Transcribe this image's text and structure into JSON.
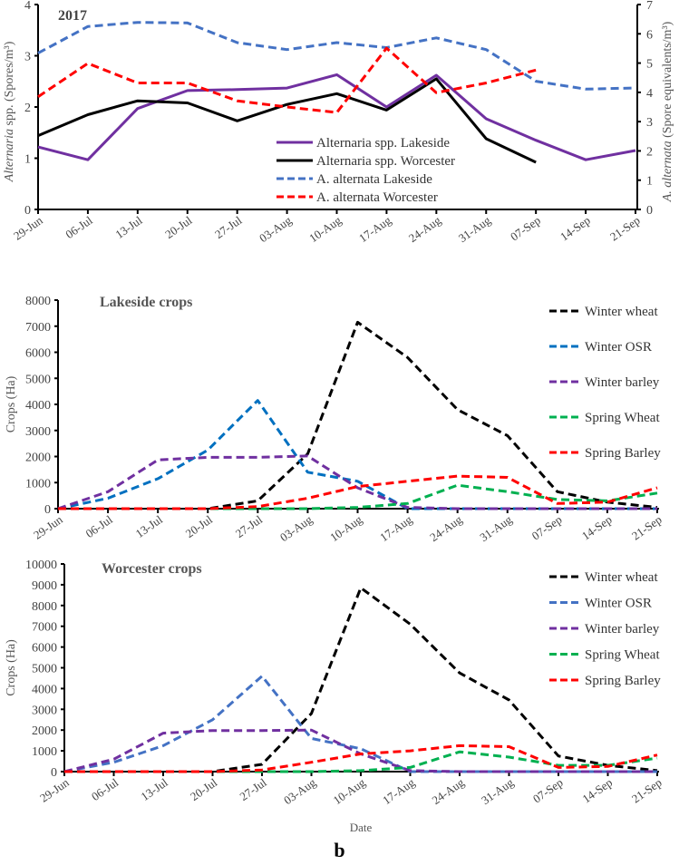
{
  "caption": "b",
  "chart_data": [
    {
      "type": "line",
      "title": "2017",
      "x": [
        "29-Jun",
        "06-Jul",
        "13-Jul",
        "20-Jul",
        "27-Jul",
        "03-Aug",
        "10-Aug",
        "17-Aug",
        "24-Aug",
        "31-Aug",
        "07-Sep",
        "14-Sep",
        "21-Sep"
      ],
      "ylabel_italic": "Alternaria",
      "ylabel_rest": " spp. (Spores/m³)",
      "y2label_italic": "A. alternata",
      "y2label_rest": " (Spore equivalents/m³)",
      "ylim": [
        0,
        4
      ],
      "yticks": [
        0,
        1,
        2,
        3,
        4
      ],
      "y2lim": [
        0,
        7
      ],
      "y2ticks": [
        0,
        1,
        2,
        3,
        4,
        5,
        6,
        7
      ],
      "legend_position": "center-right",
      "series": [
        {
          "name": "Alternaria spp. Lakeside",
          "axis": "left",
          "color": "#7030a0",
          "dash": false,
          "values": [
            1.22,
            0.97,
            1.97,
            2.32,
            2.34,
            2.37,
            2.63,
            2.0,
            2.62,
            1.77,
            1.35,
            0.97,
            1.15
          ]
        },
        {
          "name": "Alternaria spp. Worcester",
          "axis": "left",
          "color": "#000000",
          "dash": false,
          "values": [
            1.44,
            1.85,
            2.12,
            2.08,
            1.73,
            2.05,
            2.26,
            1.94,
            2.55,
            1.38,
            0.92,
            null,
            null
          ]
        },
        {
          "name": "A. alternata Lakeside",
          "axis": "right",
          "color": "#4472c4",
          "dash": true,
          "values": [
            5.34,
            6.25,
            6.39,
            6.37,
            5.7,
            5.46,
            5.7,
            5.53,
            5.86,
            5.46,
            4.38,
            4.11,
            4.15
          ]
        },
        {
          "name": "A. alternata Worcester",
          "axis": "right",
          "color": "#ff0000",
          "dash": true,
          "values": [
            3.85,
            4.99,
            4.32,
            4.32,
            3.71,
            3.5,
            3.31,
            5.51,
            3.99,
            4.32,
            4.76,
            null,
            null
          ]
        }
      ]
    },
    {
      "type": "line",
      "title": "Lakeside crops",
      "x": [
        "29-Jun",
        "06-Jul",
        "13-Jul",
        "20-Jul",
        "27-Jul",
        "03-Aug",
        "10-Aug",
        "17-Aug",
        "24-Aug",
        "31-Aug",
        "07-Sep",
        "14-Sep",
        "21-Sep"
      ],
      "ylabel": "Crops (Ha)",
      "ylim": [
        0,
        8000
      ],
      "yticks": [
        0,
        1000,
        2000,
        3000,
        4000,
        5000,
        6000,
        7000,
        8000
      ],
      "legend_position": "top-right",
      "series": [
        {
          "name": "Winter wheat",
          "color": "#000000",
          "values": [
            0,
            0,
            0,
            0,
            300,
            2100,
            7150,
            5800,
            3800,
            2800,
            650,
            250,
            50
          ]
        },
        {
          "name": "Winter OSR",
          "color": "#0070c0",
          "values": [
            0,
            400,
            1150,
            2250,
            4150,
            1400,
            1050,
            0,
            0,
            0,
            0,
            0,
            0
          ]
        },
        {
          "name": "Winter barley",
          "color": "#7030a0",
          "values": [
            0,
            650,
            1870,
            1970,
            1970,
            2020,
            800,
            50,
            0,
            0,
            0,
            0,
            0
          ]
        },
        {
          "name": "Spring Wheat",
          "color": "#00b050",
          "values": [
            0,
            0,
            0,
            0,
            0,
            0,
            50,
            200,
            900,
            650,
            350,
            300,
            600
          ]
        },
        {
          "name": "Spring Barley",
          "color": "#ff0000",
          "values": [
            0,
            0,
            0,
            0,
            80,
            400,
            850,
            1050,
            1250,
            1200,
            200,
            250,
            800
          ]
        }
      ]
    },
    {
      "type": "line",
      "title": "Worcester crops",
      "x": [
        "29-Jun",
        "06-Jul",
        "13-Jul",
        "20-Jul",
        "27-Jul",
        "03-Aug",
        "10-Aug",
        "17-Aug",
        "24-Aug",
        "31-Aug",
        "07-Sep",
        "14-Sep",
        "21-Sep"
      ],
      "xlabel": "Date",
      "ylabel": "Crops (Ha)",
      "ylim": [
        0,
        10000
      ],
      "yticks": [
        0,
        1000,
        2000,
        3000,
        4000,
        5000,
        6000,
        7000,
        8000,
        9000,
        10000
      ],
      "legend_position": "top-right",
      "series": [
        {
          "name": "Winter wheat",
          "color": "#000000",
          "values": [
            0,
            0,
            0,
            0,
            350,
            2800,
            8850,
            7100,
            4750,
            3450,
            750,
            300,
            50
          ]
        },
        {
          "name": "Winter OSR",
          "color": "#4472c4",
          "values": [
            0,
            450,
            1250,
            2500,
            4600,
            1600,
            1100,
            0,
            0,
            0,
            0,
            0,
            0
          ]
        },
        {
          "name": "Winter barley",
          "color": "#7030a0",
          "values": [
            0,
            600,
            1850,
            1980,
            1980,
            2000,
            850,
            50,
            0,
            0,
            0,
            0,
            0
          ]
        },
        {
          "name": "Spring Wheat",
          "color": "#00b050",
          "values": [
            0,
            0,
            0,
            0,
            0,
            0,
            50,
            200,
            950,
            700,
            300,
            300,
            650
          ]
        },
        {
          "name": "Spring Barley",
          "color": "#ff0000",
          "values": [
            0,
            0,
            0,
            0,
            80,
            450,
            850,
            1000,
            1250,
            1200,
            200,
            250,
            800
          ]
        }
      ]
    }
  ]
}
